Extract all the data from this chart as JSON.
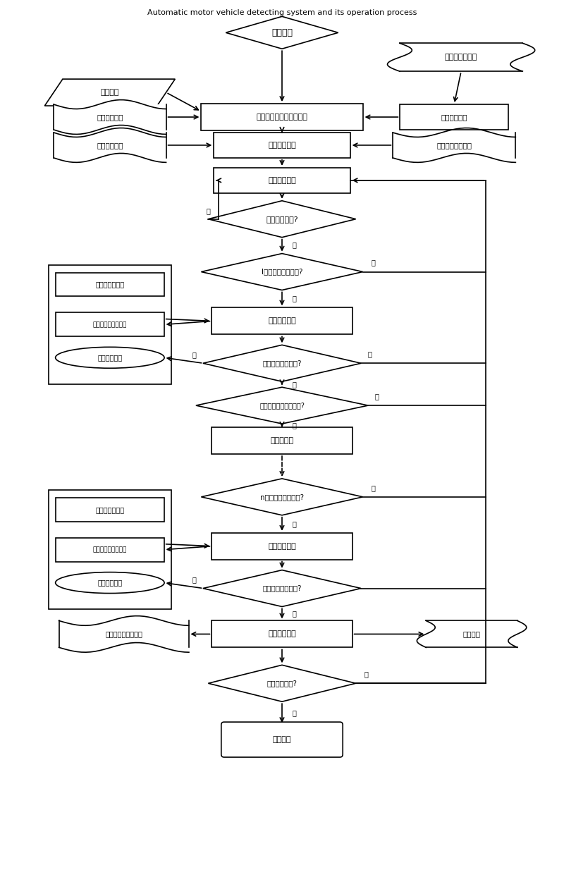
{
  "title": "Automatic motor vehicle detecting system and its operation process",
  "nodes": {
    "start": {
      "text": "检测开始"
    },
    "db_vehicle": {
      "text": "车辆信息数据库"
    },
    "manual_input": {
      "text": "人工录入"
    },
    "info_template": {
      "text": "信息模板录入"
    },
    "item_template": {
      "text": "项目模板选择"
    },
    "plate_recog": {
      "text": "号牌号码识别"
    },
    "detect_select": {
      "text": "检测类别关联选择"
    },
    "vehicle_info": {
      "text": "车辆信息、检测参数录入"
    },
    "detect_item_sel": {
      "text": "检测项目选择"
    },
    "vehicle_online": {
      "text": "车辆上线调度"
    },
    "any_online": {
      "text": "有无上线车辆?"
    },
    "station1_items": {
      "text": "I工位有无检测项目?"
    },
    "do_detect1": {
      "text": "进行项目检测"
    },
    "manual_int1": {
      "text": "人工中断工位检测?"
    },
    "next_station_q": {
      "text": "后续工位有无检测项目?"
    },
    "enter_next": {
      "text": "进入下工位"
    },
    "station_n_items": {
      "text": "n工位有无检测项目?"
    },
    "do_detect_n": {
      "text": "进行项目检测"
    },
    "manual_int_n": {
      "text": "人工中断工位检测?"
    },
    "data_process": {
      "text": "检测数据处理"
    },
    "data_store": {
      "text": "数据存储"
    },
    "all_done": {
      "text": "全部检测完成?"
    },
    "detect_end": {
      "text": "检测结束"
    },
    "b1_acq": {
      "text": "数据采集、控制"
    },
    "b1_store": {
      "text": "检测数据鉴定、存储"
    },
    "b1_disp": {
      "text": "检测信息显示"
    },
    "b2_acq": {
      "text": "数据采集、控制"
    },
    "b2_store": {
      "text": "检测数据鉴定、存储"
    },
    "b2_disp": {
      "text": "检测信息显示"
    },
    "print_rep": {
      "text": "质检单、报告单打印"
    }
  },
  "labels": {
    "you": "有",
    "wu": "无",
    "shi": "是",
    "fou": "否"
  }
}
